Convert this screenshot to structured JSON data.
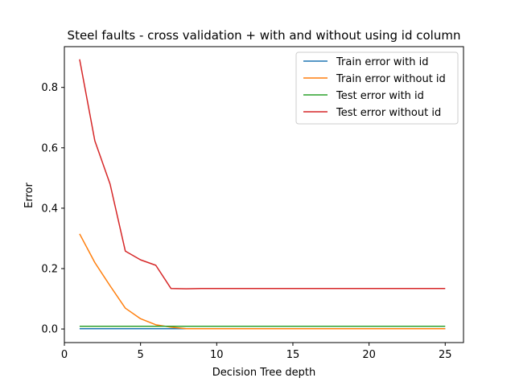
{
  "chart_data": {
    "type": "line",
    "title": "Steel faults - cross validation + with and without using id column",
    "xlabel": "Decision Tree depth",
    "ylabel": "Error",
    "xlim": [
      0,
      26.2
    ],
    "ylim": [
      -0.045,
      0.935
    ],
    "xticks": [
      0,
      5,
      10,
      15,
      20,
      25
    ],
    "yticks": [
      0.0,
      0.2,
      0.4,
      0.6,
      0.8
    ],
    "legend_position": "top-right",
    "grid": false,
    "x": [
      1,
      2,
      3,
      4,
      5,
      6,
      7,
      8,
      9,
      10,
      11,
      12,
      13,
      14,
      15,
      16,
      17,
      18,
      19,
      20,
      21,
      22,
      23,
      24,
      25
    ],
    "series": [
      {
        "name": "Train error with id",
        "color": "#1f77b4",
        "values": [
          0.001,
          0.001,
          0.001,
          0.001,
          0.001,
          0.001,
          0.001,
          0.001,
          0.001,
          0.001,
          0.001,
          0.001,
          0.001,
          0.001,
          0.001,
          0.001,
          0.001,
          0.001,
          0.001,
          0.001,
          0.001,
          0.001,
          0.001,
          0.001,
          0.001
        ]
      },
      {
        "name": "Train error without id",
        "color": "#ff7f0e",
        "values": [
          0.315,
          0.22,
          0.143,
          0.069,
          0.034,
          0.014,
          0.006,
          0.001,
          0.001,
          0.001,
          0.001,
          0.001,
          0.001,
          0.001,
          0.001,
          0.001,
          0.001,
          0.001,
          0.001,
          0.001,
          0.001,
          0.001,
          0.001,
          0.001,
          0.001
        ]
      },
      {
        "name": "Test error with id",
        "color": "#2ca02c",
        "values": [
          0.009,
          0.009,
          0.009,
          0.009,
          0.009,
          0.009,
          0.009,
          0.009,
          0.009,
          0.009,
          0.009,
          0.009,
          0.009,
          0.009,
          0.009,
          0.009,
          0.009,
          0.009,
          0.009,
          0.009,
          0.009,
          0.009,
          0.009,
          0.009,
          0.009
        ]
      },
      {
        "name": "Test error without id",
        "color": "#d62728",
        "values": [
          0.893,
          0.623,
          0.48,
          0.258,
          0.229,
          0.211,
          0.134,
          0.133,
          0.134,
          0.134,
          0.134,
          0.134,
          0.134,
          0.134,
          0.134,
          0.134,
          0.134,
          0.134,
          0.134,
          0.134,
          0.134,
          0.134,
          0.134,
          0.134,
          0.134
        ]
      }
    ]
  }
}
